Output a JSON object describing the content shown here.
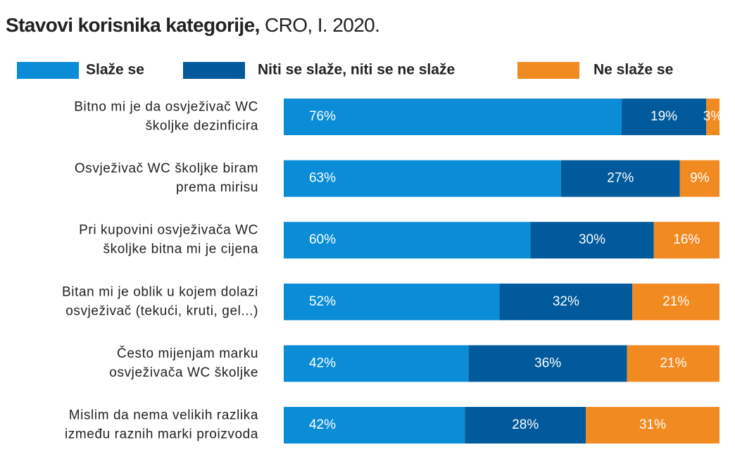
{
  "chart_data": {
    "type": "bar",
    "orientation": "horizontal",
    "stacked": "percent",
    "title": "Stavovi korisnika kategorije,",
    "subtitle": "CRO, I. 2020.",
    "categories": [
      [
        "Bitno mi je da osvježivač WC",
        "školjke dezinficira"
      ],
      [
        "Osvježivač WC školjke biram",
        "prema mirisu"
      ],
      [
        "Pri kupovini osvježivača WC",
        "školjke bitna mi je cijena"
      ],
      [
        "Bitan mi je oblik u kojem dolazi",
        "osvježivač (tekući, kruti, gel...)"
      ],
      [
        "Često mijenjam marku",
        "osvježivača WC školjke"
      ],
      [
        "Mislim da nema velikih razlika",
        "između raznih marki proizvoda"
      ]
    ],
    "series": [
      {
        "name": "Slaže se",
        "color": "#0a8dd6",
        "values": [
          76,
          63,
          60,
          52,
          42,
          42
        ],
        "value_labels": [
          "76%",
          "63%",
          "60%",
          "52%",
          "42%",
          "42%"
        ]
      },
      {
        "name": "Niti se slaže, niti se ne slaže",
        "color": "#005a9b",
        "values": [
          19,
          27,
          30,
          32,
          36,
          28
        ],
        "value_labels": [
          "19%",
          "27%",
          "30%",
          "32%",
          "36%",
          "28%"
        ]
      },
      {
        "name": "Ne slaže se",
        "color": "#f28a22",
        "values": [
          3,
          9,
          16,
          21,
          21,
          31
        ],
        "value_labels": [
          "3%",
          "9%",
          "16%",
          "21%",
          "21%",
          "31%"
        ]
      }
    ],
    "legend": "top"
  }
}
